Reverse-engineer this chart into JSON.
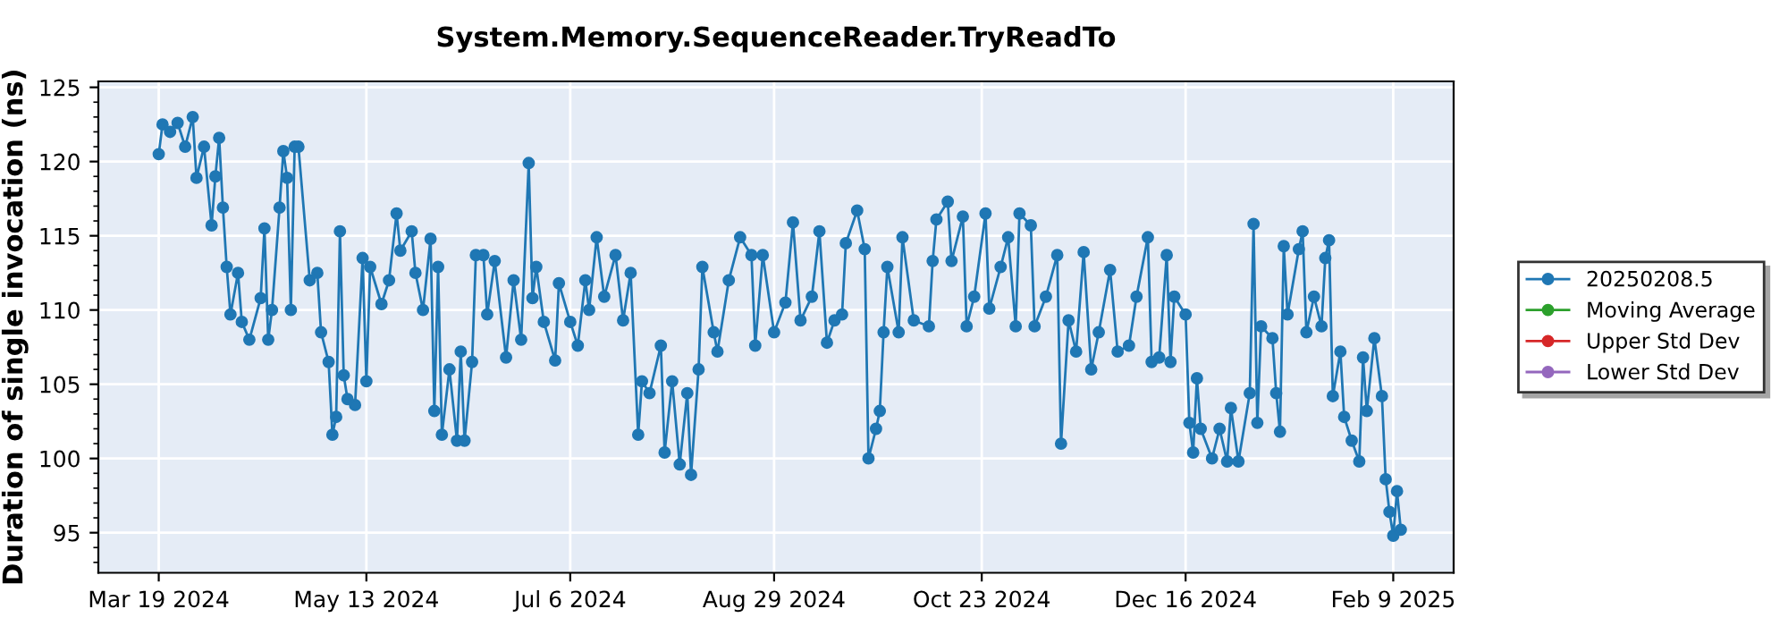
{
  "chart_data": {
    "type": "line",
    "title": "System.Memory.SequenceReader.TryReadTo",
    "ylabel": "Duration of single invocation (ns)",
    "xlim": [
      "2024-03-03",
      "2025-02-25"
    ],
    "ylim": [
      92.3,
      125.4
    ],
    "xticks": [
      {
        "value": "2024-03-19",
        "label": "Mar 19 2024"
      },
      {
        "value": "2024-05-13",
        "label": "May 13 2024"
      },
      {
        "value": "2024-07-06",
        "label": "Jul 6 2024"
      },
      {
        "value": "2024-08-29",
        "label": "Aug 29 2024"
      },
      {
        "value": "2024-10-23",
        "label": "Oct 23 2024"
      },
      {
        "value": "2024-12-16",
        "label": "Dec 16 2024"
      },
      {
        "value": "2025-02-09",
        "label": "Feb 9 2025"
      }
    ],
    "yticks": [
      95,
      100,
      105,
      110,
      115,
      120,
      125
    ],
    "grid": true,
    "legend": "right",
    "marker": "circle",
    "line_style": "solid",
    "series": [
      {
        "name": "20250208.5",
        "color": "#1f77b4",
        "x": [
          "2024-03-19",
          "2024-03-20",
          "2024-03-22",
          "2024-03-24",
          "2024-03-26",
          "2024-03-28",
          "2024-03-29",
          "2024-03-31",
          "2024-04-02",
          "2024-04-03",
          "2024-04-04",
          "2024-04-05",
          "2024-04-06",
          "2024-04-07",
          "2024-04-09",
          "2024-04-10",
          "2024-04-12",
          "2024-04-15",
          "2024-04-16",
          "2024-04-17",
          "2024-04-18",
          "2024-04-20",
          "2024-04-21",
          "2024-04-22",
          "2024-04-23",
          "2024-04-24",
          "2024-04-25",
          "2024-04-28",
          "2024-04-30",
          "2024-05-01",
          "2024-05-03",
          "2024-05-04",
          "2024-05-05",
          "2024-05-06",
          "2024-05-07",
          "2024-05-08",
          "2024-05-10",
          "2024-05-12",
          "2024-05-13",
          "2024-05-14",
          "2024-05-17",
          "2024-05-19",
          "2024-05-21",
          "2024-05-22",
          "2024-05-25",
          "2024-05-26",
          "2024-05-28",
          "2024-05-30",
          "2024-05-31",
          "2024-06-01",
          "2024-06-02",
          "2024-06-04",
          "2024-06-06",
          "2024-06-07",
          "2024-06-08",
          "2024-06-10",
          "2024-06-11",
          "2024-06-13",
          "2024-06-14",
          "2024-06-16",
          "2024-06-19",
          "2024-06-21",
          "2024-06-23",
          "2024-06-25",
          "2024-06-26",
          "2024-06-27",
          "2024-06-29",
          "2024-07-02",
          "2024-07-03",
          "2024-07-06",
          "2024-07-08",
          "2024-07-10",
          "2024-07-11",
          "2024-07-13",
          "2024-07-15",
          "2024-07-18",
          "2024-07-20",
          "2024-07-22",
          "2024-07-24",
          "2024-07-25",
          "2024-07-27",
          "2024-07-30",
          "2024-07-31",
          "2024-08-02",
          "2024-08-04",
          "2024-08-06",
          "2024-08-07",
          "2024-08-09",
          "2024-08-10",
          "2024-08-13",
          "2024-08-14",
          "2024-08-17",
          "2024-08-20",
          "2024-08-23",
          "2024-08-24",
          "2024-08-26",
          "2024-08-29",
          "2024-09-01",
          "2024-09-03",
          "2024-09-05",
          "2024-09-08",
          "2024-09-10",
          "2024-09-12",
          "2024-09-14",
          "2024-09-16",
          "2024-09-17",
          "2024-09-20",
          "2024-09-22",
          "2024-09-23",
          "2024-09-25",
          "2024-09-26",
          "2024-09-27",
          "2024-09-28",
          "2024-10-01",
          "2024-10-02",
          "2024-10-05",
          "2024-10-09",
          "2024-10-10",
          "2024-10-11",
          "2024-10-14",
          "2024-10-15",
          "2024-10-18",
          "2024-10-19",
          "2024-10-21",
          "2024-10-24",
          "2024-10-25",
          "2024-10-28",
          "2024-10-30",
          "2024-11-01",
          "2024-11-02",
          "2024-11-05",
          "2024-11-06",
          "2024-11-09",
          "2024-11-12",
          "2024-11-13",
          "2024-11-15",
          "2024-11-17",
          "2024-11-19",
          "2024-11-21",
          "2024-11-23",
          "2024-11-26",
          "2024-11-28",
          "2024-12-01",
          "2024-12-03",
          "2024-12-06",
          "2024-12-07",
          "2024-12-09",
          "2024-12-11",
          "2024-12-12",
          "2024-12-13",
          "2024-12-16",
          "2024-12-17",
          "2024-12-18",
          "2024-12-19",
          "2024-12-20",
          "2024-12-23",
          "2024-12-25",
          "2024-12-27",
          "2024-12-28",
          "2024-12-30",
          "2025-01-02",
          "2025-01-03",
          "2025-01-04",
          "2025-01-05",
          "2025-01-08",
          "2025-01-09",
          "2025-01-10",
          "2025-01-11",
          "2025-01-12",
          "2025-01-15",
          "2025-01-16",
          "2025-01-17",
          "2025-01-19",
          "2025-01-21",
          "2025-01-22",
          "2025-01-23",
          "2025-01-24",
          "2025-01-26",
          "2025-01-27",
          "2025-01-29",
          "2025-01-31",
          "2025-02-01",
          "2025-02-02",
          "2025-02-04",
          "2025-02-06",
          "2025-02-07",
          "2025-02-08",
          "2025-02-09",
          "2025-02-10",
          "2025-02-11"
        ],
        "values": [
          120.5,
          122.5,
          122,
          122.6,
          121,
          123,
          118.9,
          121,
          115.7,
          119,
          121.6,
          116.9,
          112.9,
          109.7,
          112.5,
          109.2,
          108,
          110.8,
          115.5,
          108,
          110,
          116.9,
          120.7,
          118.9,
          110,
          121,
          121,
          112,
          112.5,
          108.5,
          106.5,
          101.6,
          102.8,
          115.3,
          105.6,
          104,
          103.6,
          113.5,
          105.2,
          112.9,
          110.4,
          112,
          116.5,
          114,
          115.3,
          112.5,
          110,
          114.8,
          103.2,
          112.9,
          101.6,
          106,
          101.2,
          107.2,
          101.2,
          106.5,
          113.7,
          113.7,
          109.7,
          113.3,
          106.8,
          112,
          108,
          119.9,
          110.8,
          112.9,
          109.2,
          106.6,
          111.8,
          109.2,
          107.6,
          112,
          110,
          114.9,
          110.9,
          113.7,
          109.3,
          112.5,
          101.6,
          105.2,
          104.4,
          107.6,
          100.4,
          105.2,
          99.6,
          104.4,
          98.9,
          106,
          112.9,
          108.5,
          107.2,
          112,
          114.9,
          113.7,
          107.6,
          113.7,
          108.5,
          110.5,
          115.9,
          109.3,
          110.9,
          115.3,
          107.8,
          109.3,
          109.7,
          114.5,
          116.7,
          114.1,
          100,
          102,
          103.2,
          108.5,
          112.9,
          108.5,
          114.9,
          109.3,
          108.9,
          113.3,
          116.1,
          117.3,
          113.3,
          116.3,
          108.9,
          110.9,
          116.5,
          110.1,
          112.9,
          114.9,
          108.9,
          116.5,
          115.7,
          108.9,
          110.9,
          113.7,
          101,
          109.3,
          107.2,
          113.9,
          106,
          108.5,
          112.7,
          107.2,
          107.6,
          110.9,
          114.9,
          106.5,
          106.8,
          113.7,
          106.5,
          110.9,
          109.7,
          102.4,
          100.4,
          105.4,
          102,
          100,
          102,
          99.8,
          103.4,
          99.8,
          104.4,
          115.8,
          102.4,
          108.9,
          108.1,
          104.4,
          101.8,
          114.3,
          109.7,
          114.1,
          115.3,
          108.5,
          110.9,
          108.9,
          113.5,
          114.7,
          104.2,
          107.2,
          102.8,
          101.2,
          99.8,
          106.8,
          103.2,
          108.1,
          104.2,
          98.6,
          96.4,
          94.8,
          97.8,
          95.2
        ]
      },
      {
        "name": "Moving Average",
        "color": "#2ca02c"
      },
      {
        "name": "Upper Std Dev",
        "color": "#d62728"
      },
      {
        "name": "Lower Std Dev",
        "color": "#9467bd"
      }
    ]
  }
}
